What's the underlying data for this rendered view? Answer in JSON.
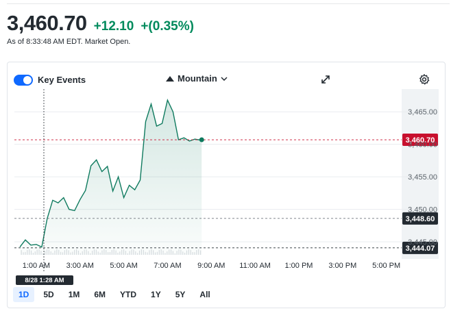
{
  "quote": {
    "price": "3,460.70",
    "change": "+12.10",
    "change_pct": "+(0.35%)",
    "as_of": "As of 8:33:48 AM EDT. Market Open."
  },
  "toolbar": {
    "key_events_label": "Key Events",
    "key_events_on": true,
    "chart_style_label": "Mountain"
  },
  "range_tabs": [
    "1D",
    "5D",
    "1M",
    "6M",
    "YTD",
    "1Y",
    "5Y",
    "All"
  ],
  "active_range": "1D",
  "crosshair_label": "8/28 1:28 AM",
  "colors": {
    "up": "#008a5c",
    "line": "#0e7a5e",
    "current_price": "#c8102e",
    "tab_active": "#0f69ff"
  },
  "chart_data": {
    "type": "area",
    "x_ticks": [
      "1:00 AM",
      "3:00 AM",
      "5:00 AM",
      "7:00 AM",
      "9:00 AM",
      "11:00 AM",
      "1:00 PM",
      "3:00 PM",
      "5:00 PM"
    ],
    "y_ticks": [
      "3,465.00",
      "3,460.00",
      "3,455.00",
      "3,450.00",
      "3,445.00"
    ],
    "ylim": [
      3443,
      3468.5
    ],
    "reference_lines": [
      {
        "label": "3,460.70",
        "value": 3460.7,
        "style": "current"
      },
      {
        "label": "3,448.60",
        "value": 3448.6,
        "style": "previous-close"
      },
      {
        "label": "3,444.07",
        "value": 3444.07,
        "style": "crosshair"
      }
    ],
    "series": [
      {
        "x_hours": [
          0.25,
          0.5,
          0.75,
          1.0,
          1.25,
          1.5,
          1.75,
          2.0,
          2.25,
          2.5,
          2.75,
          3.0,
          3.25,
          3.5,
          3.75,
          4.0,
          4.25,
          4.5,
          4.75,
          5.0,
          5.25,
          5.5,
          5.75,
          6.0,
          6.25,
          6.5,
          6.75,
          7.0,
          7.25,
          7.5,
          7.75,
          8.0,
          8.25,
          8.4,
          8.56
        ],
        "values": [
          3444.2,
          3445.3,
          3444.5,
          3444.6,
          3444.2,
          3448.6,
          3451.4,
          3451.0,
          3451.8,
          3450.0,
          3449.8,
          3451.5,
          3452.9,
          3456.7,
          3457.6,
          3455.8,
          3456.6,
          3452.8,
          3455.0,
          3451.8,
          3453.7,
          3453.0,
          3454.5,
          3463.5,
          3466.2,
          3462.8,
          3463.2,
          3466.8,
          3465.0,
          3460.7,
          3461.0,
          3460.5,
          3460.8,
          3460.7,
          3460.7
        ]
      }
    ]
  }
}
